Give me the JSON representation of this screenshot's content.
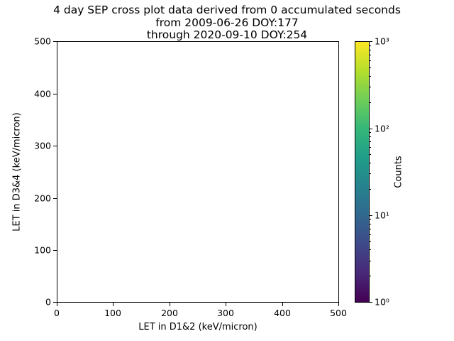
{
  "figure": {
    "title_lines": [
      "4 day SEP cross plot data derived from 0 accumulated seconds",
      "from 2009-06-26 DOY:177",
      "through 2020-09-10 DOY:254"
    ]
  },
  "axes": {
    "xlabel": "LET in D1&2 (keV/micron)",
    "ylabel": "LET in D3&4 (keV/micron)",
    "xtick_labels": [
      "0",
      "100",
      "200",
      "300",
      "400",
      "500"
    ],
    "ytick_labels": [
      "0",
      "100",
      "200",
      "300",
      "400",
      "500"
    ]
  },
  "colorbar": {
    "label": "Counts",
    "tick_labels": [
      "10³",
      "10²",
      "10¹",
      "10⁰"
    ],
    "gradient": [
      "#440154",
      "#482878",
      "#3e4989",
      "#31688e",
      "#26828e",
      "#1f9e89",
      "#35b779",
      "#6ece58",
      "#b5de2b",
      "#fde725"
    ]
  },
  "chart_data": {
    "type": "scatter",
    "title": "4 day SEP cross plot data derived from 0 accumulated seconds\nfrom 2009-06-26 DOY:177\nthrough 2020-09-10 DOY:254",
    "xlabel": "LET in D1&2 (keV/micron)",
    "ylabel": "LET in D3&4 (keV/micron)",
    "xlim": [
      0,
      500
    ],
    "ylim": [
      0,
      500
    ],
    "xticks": [
      0,
      100,
      200,
      300,
      400,
      500
    ],
    "yticks": [
      0,
      100,
      200,
      300,
      400,
      500
    ],
    "grid": false,
    "points": [],
    "colorbar": {
      "label": "Counts",
      "scale": "log",
      "range": [
        1,
        1000
      ],
      "colormap": "viridis",
      "tick_values": [
        1,
        10,
        100,
        1000
      ]
    }
  }
}
